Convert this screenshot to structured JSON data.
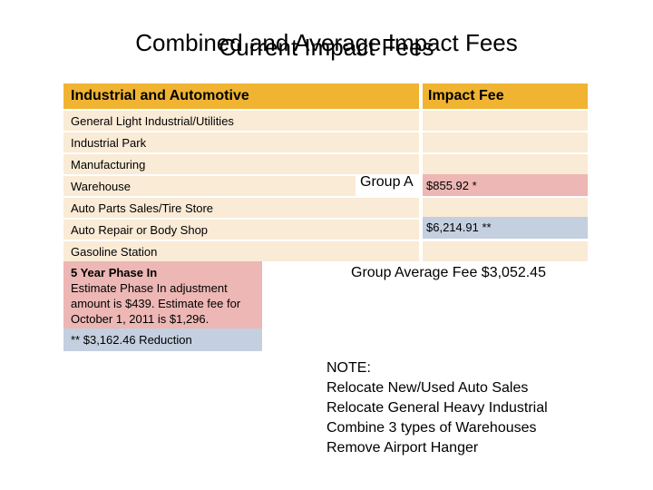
{
  "title": {
    "line1": "Combined and Average Impact Fees",
    "line2": "Current Impact Fees"
  },
  "table": {
    "header_category": "Industrial and Automotive",
    "header_fee": "Impact Fee",
    "rows": [
      "General Light Industrial/Utilities",
      "Industrial Park",
      "Manufacturing",
      "Warehouse",
      "Auto Parts Sales/Tire Store",
      "Auto Repair or Body Shop",
      "Gasoline Station"
    ],
    "fee_group_a": "$855.92 *",
    "fee_group_b": "$6,214.91 **"
  },
  "labels": {
    "group_a": "Group A",
    "group_average": "Group Average Fee $3,052.45"
  },
  "footnotes": {
    "phase_title": "5 Year Phase In",
    "phase_lines": [
      "Estimate Phase In adjustment",
      "amount is $439. Estimate fee for",
      "October 1, 2011 is $1,296."
    ],
    "reduction": "** $3,162.46  Reduction"
  },
  "note": {
    "heading": "NOTE:",
    "lines": [
      "Relocate New/Used Auto Sales",
      "Relocate General Heavy Industrial",
      "Combine 3 types of Warehouses",
      "Remove Airport Hanger"
    ]
  },
  "colors": {
    "header": "#f0b432",
    "row": "#faebd6",
    "pink": "#ecb7b4",
    "blue": "#c4cfe0"
  }
}
